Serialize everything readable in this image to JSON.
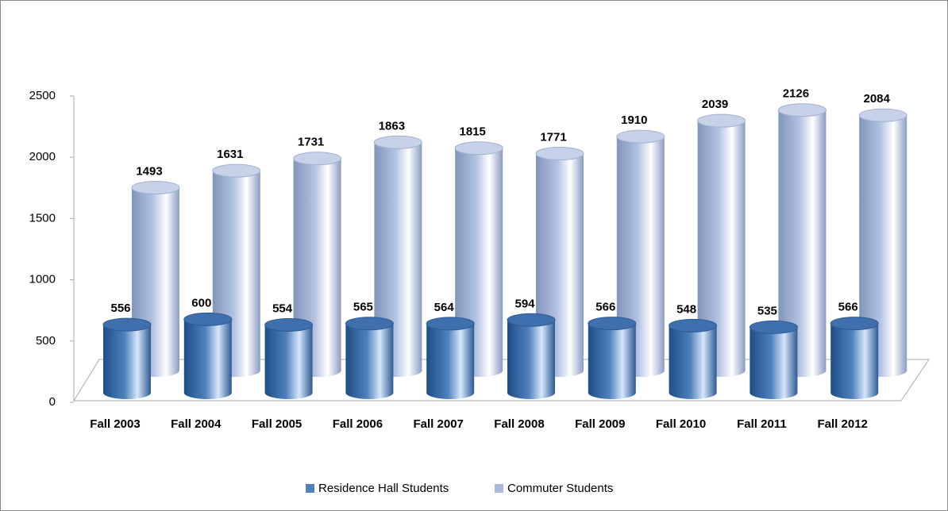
{
  "chart_data": {
    "type": "bar",
    "categories": [
      "Fall 2003",
      "Fall 2004",
      "Fall 2005",
      "Fall 2006",
      "Fall 2007",
      "Fall 2008",
      "Fall 2009",
      "Fall 2010",
      "Fall 2011",
      "Fall 2012"
    ],
    "series": [
      {
        "name": "Residence Hall Students",
        "color": "#4f81bd",
        "values": [
          556,
          600,
          554,
          565,
          564,
          594,
          566,
          548,
          535,
          566
        ]
      },
      {
        "name": "Commuter Students",
        "color": "#a9bbdc",
        "values": [
          1493,
          1631,
          1731,
          1863,
          1815,
          1771,
          1910,
          2039,
          2126,
          2084
        ]
      }
    ],
    "ylim": [
      0,
      2500
    ],
    "yticks": [
      0,
      500,
      1000,
      1500,
      2000,
      2500
    ],
    "grid": false,
    "legend": "bottom"
  }
}
